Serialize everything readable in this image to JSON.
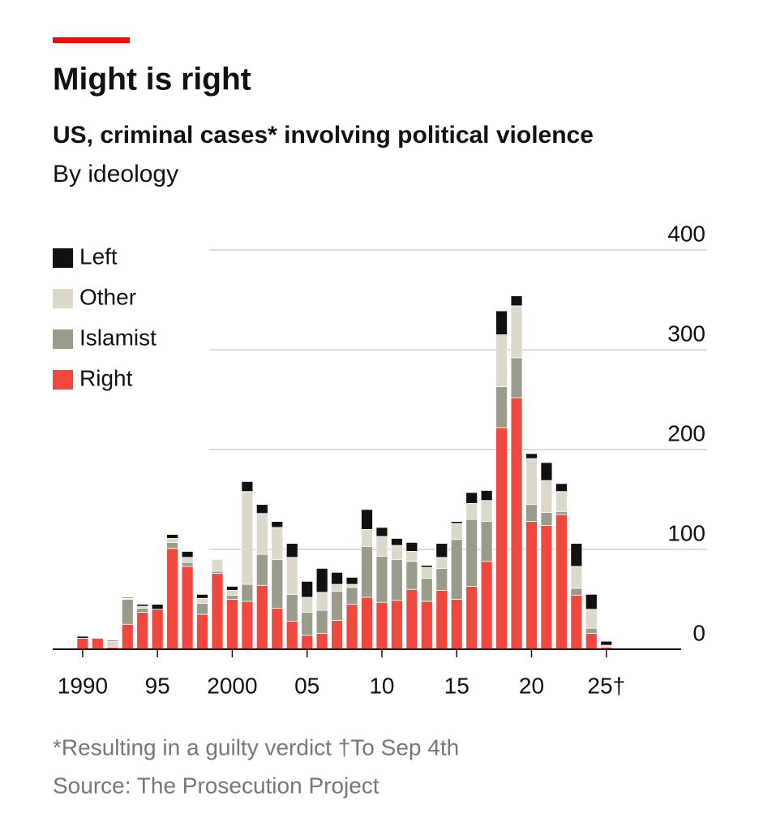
{
  "chart_data": {
    "type": "stacked-bar",
    "title": "Might is right",
    "subtitle": "US, criminal cases* involving political violence",
    "subtitle2": "By ideology",
    "footnote": "*Resulting in a guilty verdict †To Sep 4th",
    "source": "Source: The Prosecution Project",
    "x": [
      1990,
      1991,
      1992,
      1993,
      1994,
      1995,
      1996,
      1997,
      1998,
      1999,
      2000,
      2001,
      2002,
      2003,
      2004,
      2005,
      2006,
      2007,
      2008,
      2009,
      2010,
      2011,
      2012,
      2013,
      2014,
      2015,
      2016,
      2017,
      2018,
      2019,
      2020,
      2021,
      2022,
      2023,
      2024,
      2025
    ],
    "series": [
      {
        "name": "Right",
        "color": "#f0483d",
        "values": [
          11,
          11,
          2,
          25,
          37,
          40,
          101,
          83,
          35,
          76,
          50,
          48,
          64,
          41,
          28,
          14,
          16,
          29,
          45,
          52,
          47,
          49,
          60,
          48,
          59,
          50,
          63,
          88,
          222,
          252,
          128,
          124,
          135,
          54,
          16,
          2
        ]
      },
      {
        "name": "Islamist",
        "color": "#9b9b8b",
        "values": [
          0,
          0,
          0,
          25,
          4,
          0,
          6,
          4,
          11,
          2,
          4,
          17,
          31,
          49,
          27,
          23,
          23,
          29,
          17,
          51,
          46,
          41,
          28,
          23,
          22,
          60,
          67,
          40,
          41,
          40,
          17,
          13,
          3,
          7,
          5,
          1
        ]
      },
      {
        "name": "Other",
        "color": "#dcd9cb",
        "values": [
          0,
          0,
          6,
          1,
          2,
          0,
          4,
          5,
          5,
          12,
          5,
          93,
          41,
          32,
          37,
          15,
          18,
          7,
          3,
          17,
          20,
          14,
          10,
          11,
          11,
          16,
          16,
          21,
          52,
          52,
          46,
          32,
          20,
          22,
          19,
          1
        ]
      },
      {
        "name": "Left",
        "color": "#111111",
        "values": [
          2,
          0,
          1,
          1,
          2,
          5,
          4,
          6,
          4,
          0,
          4,
          10,
          9,
          6,
          14,
          16,
          24,
          12,
          7,
          20,
          9,
          7,
          9,
          2,
          14,
          2,
          11,
          10,
          24,
          10,
          5,
          18,
          8,
          23,
          15,
          4
        ]
      }
    ],
    "xlim": [
      1988,
      2030
    ],
    "xticks": [
      1990,
      {
        "value": 1995,
        "label": "95"
      },
      2000,
      {
        "value": 2005,
        "label": "05"
      },
      {
        "value": 2010,
        "label": "10"
      },
      {
        "value": 2015,
        "label": "15"
      },
      {
        "value": 2020,
        "label": "20"
      },
      {
        "value": 2025,
        "label": "25†"
      }
    ],
    "ylim": [
      0,
      400
    ],
    "yticks": [
      0,
      100,
      200,
      300,
      400
    ],
    "grid": true,
    "legend": "top-left"
  }
}
